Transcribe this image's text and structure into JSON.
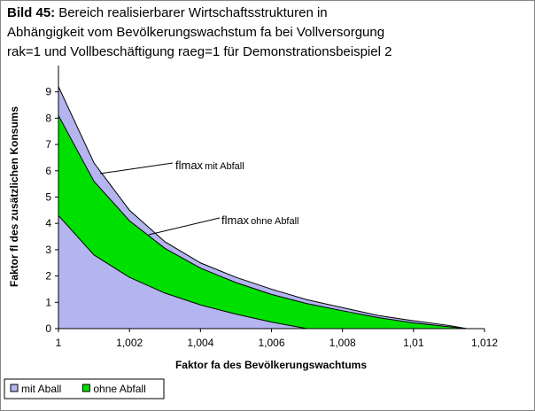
{
  "chart_data": {
    "type": "area",
    "title_prefix": "Bild 45:",
    "title_lines": [
      "Bereich realisierbarer Wirtschaftsstrukturen in",
      "Abhängigkeit vom Bevölkerungswachstum fa bei Vollversorgung",
      "rak=1 und Vollbeschäftigung raeg=1 für Demonstrationsbeispiel 2"
    ],
    "x_label": "Faktor fa des Bevölkerungswachtums",
    "y_label": "Faktor fl des zusätzlichen Konsums",
    "x": [
      1,
      1.001,
      1.002,
      1.003,
      1.004,
      1.005,
      1.006,
      1.007,
      1.008,
      1.009,
      1.01,
      1.011,
      1.0115
    ],
    "series": [
      {
        "name": "mit Aball",
        "color": "#b4b4f0",
        "values": [
          9.2,
          6.3,
          4.5,
          3.3,
          2.5,
          1.95,
          1.5,
          1.1,
          0.8,
          0.5,
          0.3,
          0.12,
          0
        ],
        "values_lower": [
          4.3,
          2.8,
          1.95,
          1.35,
          0.9,
          0.55,
          0.25,
          0,
          0,
          0,
          0,
          0,
          0
        ]
      },
      {
        "name": "ohne Abfall",
        "color": "#00e000",
        "values": [
          8.1,
          5.6,
          4.1,
          3.05,
          2.3,
          1.75,
          1.3,
          0.95,
          0.68,
          0.42,
          0.22,
          0.07,
          0
        ]
      }
    ],
    "annotations": [
      {
        "main": "flmax",
        "small": "mit Abfall"
      },
      {
        "main": "flmax",
        "small": "ohne Abfall"
      }
    ],
    "xlim": [
      1,
      1.012
    ],
    "xticks": [
      1,
      {
        "value": 1.002,
        "label": "1,002"
      },
      {
        "value": 1.004,
        "label": "1,004"
      },
      {
        "value": 1.006,
        "label": "1,006"
      },
      {
        "value": 1.008,
        "label": "1,008"
      },
      {
        "value": 1.01,
        "label": "1,01"
      },
      {
        "value": 1.012,
        "label": "1,012"
      }
    ],
    "ylim": [
      0,
      10
    ],
    "yticks": [
      0,
      1,
      2,
      3,
      4,
      5,
      6,
      7,
      8,
      9
    ],
    "legend": "bottom-left"
  }
}
